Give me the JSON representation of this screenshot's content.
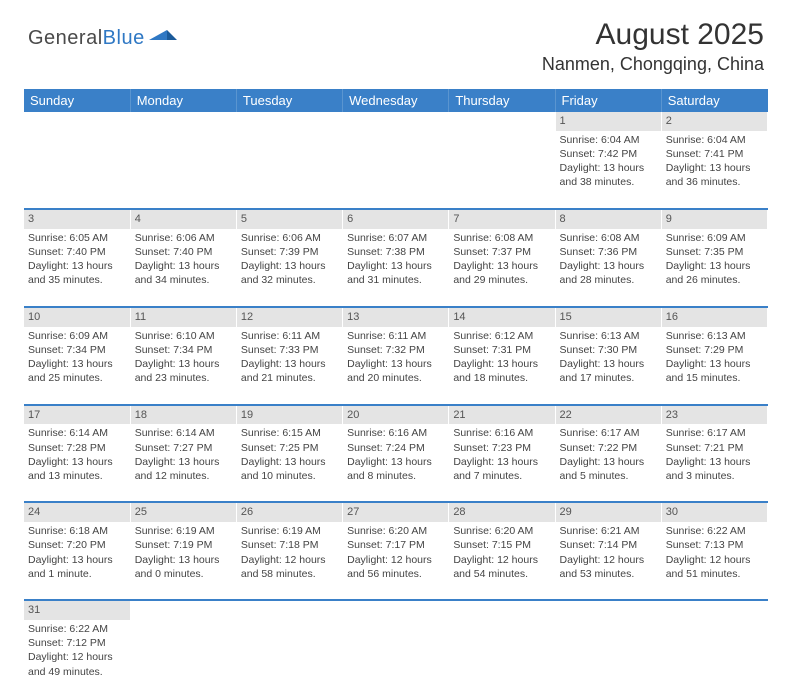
{
  "brand": {
    "name_a": "General",
    "name_b": "Blue"
  },
  "title": "August 2025",
  "location": "Nanmen, Chongqing, China",
  "colors": {
    "header_bg": "#3a80c8",
    "header_text": "#ffffff",
    "daynum_bg": "#e4e4e4",
    "row_border": "#3a80c8",
    "brand_blue": "#2f78c4",
    "body_text": "#444"
  },
  "day_headers": [
    "Sunday",
    "Monday",
    "Tuesday",
    "Wednesday",
    "Thursday",
    "Friday",
    "Saturday"
  ],
  "weeks": [
    [
      null,
      null,
      null,
      null,
      null,
      {
        "n": "1",
        "sr": "6:04 AM",
        "ss": "7:42 PM",
        "dl": "13 hours and 38 minutes."
      },
      {
        "n": "2",
        "sr": "6:04 AM",
        "ss": "7:41 PM",
        "dl": "13 hours and 36 minutes."
      }
    ],
    [
      {
        "n": "3",
        "sr": "6:05 AM",
        "ss": "7:40 PM",
        "dl": "13 hours and 35 minutes."
      },
      {
        "n": "4",
        "sr": "6:06 AM",
        "ss": "7:40 PM",
        "dl": "13 hours and 34 minutes."
      },
      {
        "n": "5",
        "sr": "6:06 AM",
        "ss": "7:39 PM",
        "dl": "13 hours and 32 minutes."
      },
      {
        "n": "6",
        "sr": "6:07 AM",
        "ss": "7:38 PM",
        "dl": "13 hours and 31 minutes."
      },
      {
        "n": "7",
        "sr": "6:08 AM",
        "ss": "7:37 PM",
        "dl": "13 hours and 29 minutes."
      },
      {
        "n": "8",
        "sr": "6:08 AM",
        "ss": "7:36 PM",
        "dl": "13 hours and 28 minutes."
      },
      {
        "n": "9",
        "sr": "6:09 AM",
        "ss": "7:35 PM",
        "dl": "13 hours and 26 minutes."
      }
    ],
    [
      {
        "n": "10",
        "sr": "6:09 AM",
        "ss": "7:34 PM",
        "dl": "13 hours and 25 minutes."
      },
      {
        "n": "11",
        "sr": "6:10 AM",
        "ss": "7:34 PM",
        "dl": "13 hours and 23 minutes."
      },
      {
        "n": "12",
        "sr": "6:11 AM",
        "ss": "7:33 PM",
        "dl": "13 hours and 21 minutes."
      },
      {
        "n": "13",
        "sr": "6:11 AM",
        "ss": "7:32 PM",
        "dl": "13 hours and 20 minutes."
      },
      {
        "n": "14",
        "sr": "6:12 AM",
        "ss": "7:31 PM",
        "dl": "13 hours and 18 minutes."
      },
      {
        "n": "15",
        "sr": "6:13 AM",
        "ss": "7:30 PM",
        "dl": "13 hours and 17 minutes."
      },
      {
        "n": "16",
        "sr": "6:13 AM",
        "ss": "7:29 PM",
        "dl": "13 hours and 15 minutes."
      }
    ],
    [
      {
        "n": "17",
        "sr": "6:14 AM",
        "ss": "7:28 PM",
        "dl": "13 hours and 13 minutes."
      },
      {
        "n": "18",
        "sr": "6:14 AM",
        "ss": "7:27 PM",
        "dl": "13 hours and 12 minutes."
      },
      {
        "n": "19",
        "sr": "6:15 AM",
        "ss": "7:25 PM",
        "dl": "13 hours and 10 minutes."
      },
      {
        "n": "20",
        "sr": "6:16 AM",
        "ss": "7:24 PM",
        "dl": "13 hours and 8 minutes."
      },
      {
        "n": "21",
        "sr": "6:16 AM",
        "ss": "7:23 PM",
        "dl": "13 hours and 7 minutes."
      },
      {
        "n": "22",
        "sr": "6:17 AM",
        "ss": "7:22 PM",
        "dl": "13 hours and 5 minutes."
      },
      {
        "n": "23",
        "sr": "6:17 AM",
        "ss": "7:21 PM",
        "dl": "13 hours and 3 minutes."
      }
    ],
    [
      {
        "n": "24",
        "sr": "6:18 AM",
        "ss": "7:20 PM",
        "dl": "13 hours and 1 minute."
      },
      {
        "n": "25",
        "sr": "6:19 AM",
        "ss": "7:19 PM",
        "dl": "13 hours and 0 minutes."
      },
      {
        "n": "26",
        "sr": "6:19 AM",
        "ss": "7:18 PM",
        "dl": "12 hours and 58 minutes."
      },
      {
        "n": "27",
        "sr": "6:20 AM",
        "ss": "7:17 PM",
        "dl": "12 hours and 56 minutes."
      },
      {
        "n": "28",
        "sr": "6:20 AM",
        "ss": "7:15 PM",
        "dl": "12 hours and 54 minutes."
      },
      {
        "n": "29",
        "sr": "6:21 AM",
        "ss": "7:14 PM",
        "dl": "12 hours and 53 minutes."
      },
      {
        "n": "30",
        "sr": "6:22 AM",
        "ss": "7:13 PM",
        "dl": "12 hours and 51 minutes."
      }
    ],
    [
      {
        "n": "31",
        "sr": "6:22 AM",
        "ss": "7:12 PM",
        "dl": "12 hours and 49 minutes."
      },
      null,
      null,
      null,
      null,
      null,
      null
    ]
  ],
  "labels": {
    "sunrise": "Sunrise:",
    "sunset": "Sunset:",
    "daylight": "Daylight:"
  }
}
